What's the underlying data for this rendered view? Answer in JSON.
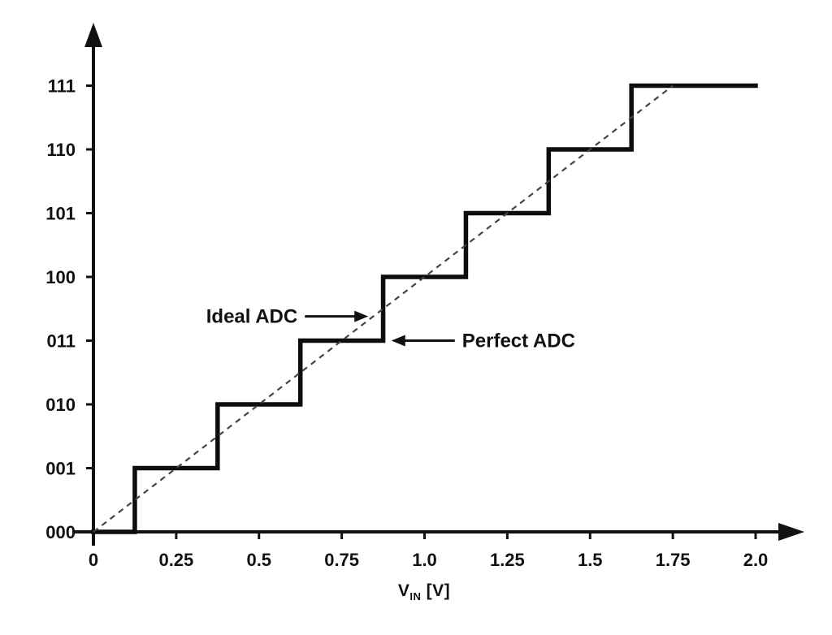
{
  "figure": {
    "background": "#ffffff"
  },
  "colors": {
    "axis": "#111111",
    "staircase": "#0d0d0d",
    "ideal_line": "#444444",
    "text": "#111111"
  },
  "chart_data": {
    "type": "line",
    "title": "",
    "xlabel": "V_IN [V]",
    "xlabel_parts": {
      "main": "V",
      "sub": "IN",
      "unit": " [V]"
    },
    "ylabel": "",
    "xlim": [
      0,
      2.0
    ],
    "ylim": [
      0,
      7
    ],
    "grid": false,
    "legend": "none",
    "x_ticks": [
      0,
      0.25,
      0.5,
      0.75,
      1.0,
      1.25,
      1.5,
      1.75,
      2.0
    ],
    "x_tick_labels": [
      "0",
      "0.25",
      "0.5",
      "0.75",
      "1.0",
      "1.25",
      "1.5",
      "1.75",
      "2.0"
    ],
    "y_ticks": [
      0,
      1,
      2,
      3,
      4,
      5,
      6,
      7
    ],
    "y_tick_labels": [
      "000",
      "001",
      "010",
      "011",
      "100",
      "101",
      "110",
      "111"
    ],
    "series": [
      {
        "name": "Perfect ADC",
        "style": "staircase-solid",
        "points": [
          [
            0,
            0
          ],
          [
            0.125,
            0
          ],
          [
            0.125,
            1
          ],
          [
            0.375,
            1
          ],
          [
            0.375,
            2
          ],
          [
            0.625,
            2
          ],
          [
            0.625,
            3
          ],
          [
            0.875,
            3
          ],
          [
            0.875,
            4
          ],
          [
            1.125,
            4
          ],
          [
            1.125,
            5
          ],
          [
            1.375,
            5
          ],
          [
            1.375,
            6
          ],
          [
            1.625,
            6
          ],
          [
            1.625,
            7
          ],
          [
            2.0,
            7
          ]
        ]
      },
      {
        "name": "Ideal ADC",
        "style": "dashed",
        "points": [
          [
            0,
            0
          ],
          [
            1.75,
            7
          ]
        ]
      }
    ],
    "annotations": [
      {
        "label": "Ideal ADC",
        "arrow": "right",
        "tip_x": 0.83,
        "tip_y": 3.38
      },
      {
        "label": "Perfect ADC",
        "arrow": "left",
        "tip_x": 0.9,
        "tip_y": 3.0
      }
    ]
  }
}
